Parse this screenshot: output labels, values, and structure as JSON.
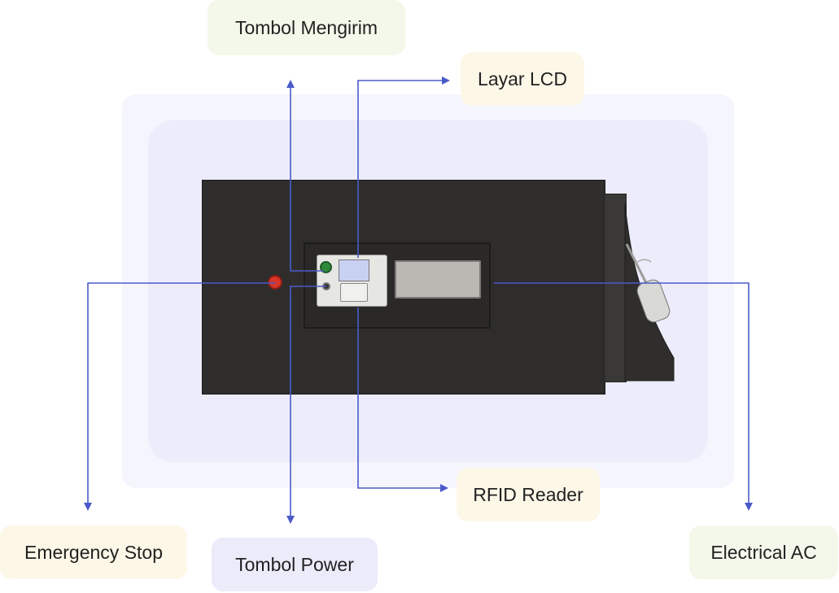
{
  "labels": {
    "tombol_mengirim": "Tombol Mengirim",
    "layar_lcd": "Layar LCD",
    "rfid_reader": "RFID Reader",
    "emergency_stop": "Emergency Stop",
    "tombol_power": "Tombol Power",
    "electrical_ac": "Electrical AC"
  },
  "colors": {
    "connector_line": "#4a5bc9",
    "label_green_bg": "#f4f8ea",
    "label_yellow_bg": "#fdf7e8",
    "label_purple_bg": "#ecebfa",
    "device_body": "#2e2d2c",
    "emergency_button": "#d63528",
    "send_button": "#2f8a3a"
  }
}
